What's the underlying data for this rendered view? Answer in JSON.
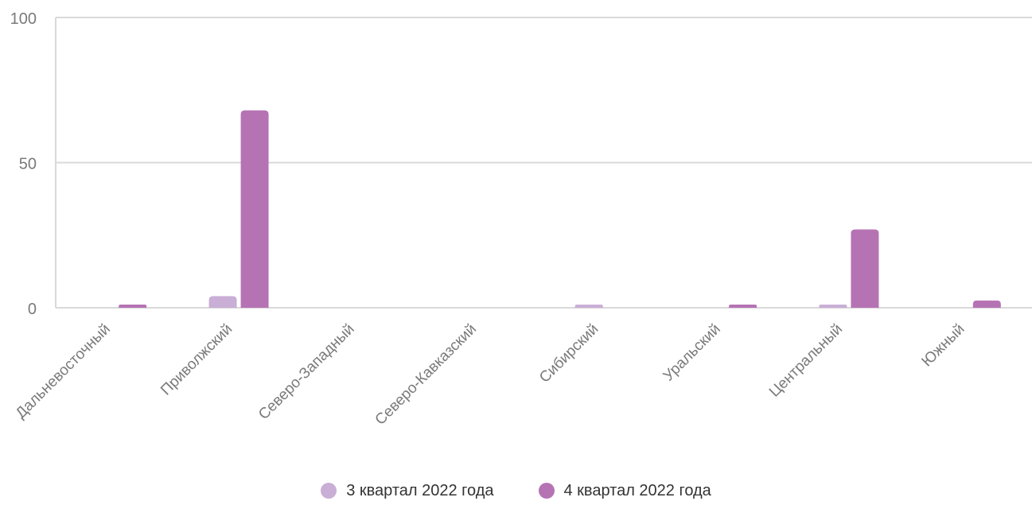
{
  "chart_data": {
    "type": "bar",
    "categories": [
      "Дальневосточный",
      "Приволжский",
      "Северо-Западный",
      "Северо-Кавказский",
      "Сибирский",
      "Уральский",
      "Центральный",
      "Южный"
    ],
    "series": [
      {
        "name": "3 квартал 2022 года",
        "color": "#c9aed6",
        "values": [
          0,
          4,
          0,
          0,
          1,
          0,
          1,
          0
        ]
      },
      {
        "name": "4 квартал 2022 года",
        "color": "#b673b4",
        "values": [
          1,
          68,
          0,
          0,
          0,
          1,
          27,
          2.5
        ]
      }
    ],
    "ylim": [
      0,
      100
    ],
    "yticks": [
      0,
      50,
      100
    ],
    "grid": true,
    "legend_position": "bottom",
    "xlabel": "",
    "ylabel": ""
  }
}
